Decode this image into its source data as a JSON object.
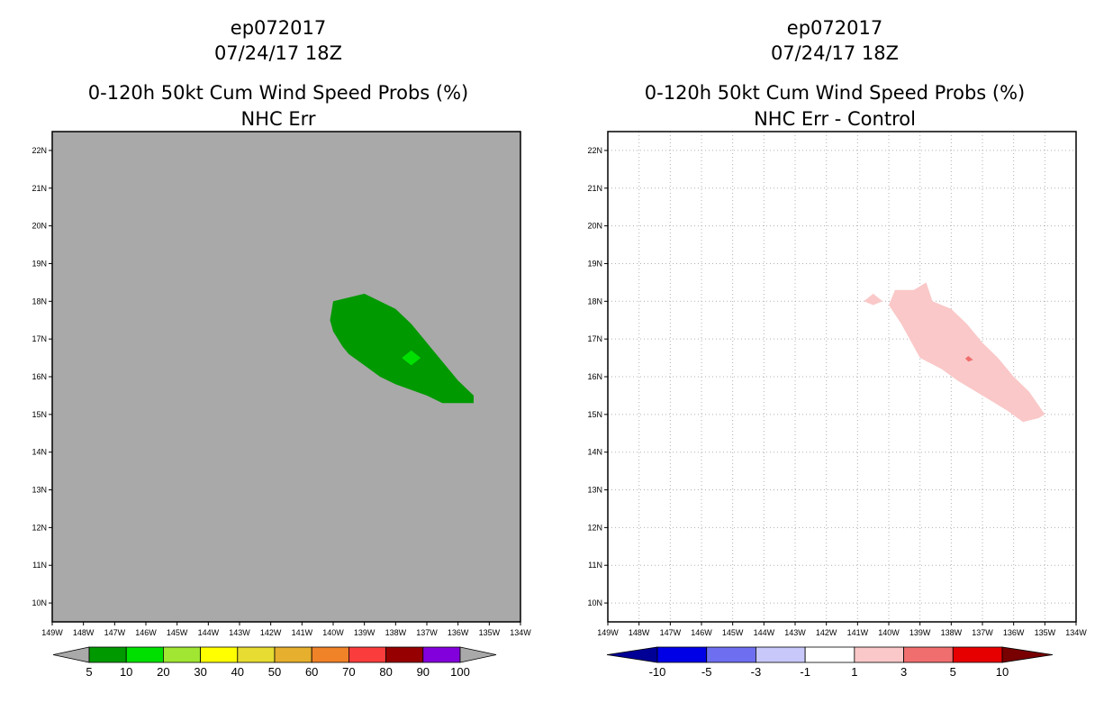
{
  "chart_data": [
    {
      "type": "filled-contour-map",
      "title_line1": "ep072017",
      "title_line2": "07/24/17 18Z",
      "title_line3": "0-120h 50kt Cum Wind Speed Probs (%)",
      "title_line4": "NHC Err",
      "background_color": "#a9a9a9",
      "grid": false,
      "xlim": [
        -149,
        -134
      ],
      "ylim": [
        9.5,
        22.5
      ],
      "x_ticks": [
        {
          "value": -149,
          "label": "149W"
        },
        {
          "value": -148,
          "label": "148W"
        },
        {
          "value": -147,
          "label": "147W"
        },
        {
          "value": -146,
          "label": "146W"
        },
        {
          "value": -145,
          "label": "145W"
        },
        {
          "value": -144,
          "label": "144W"
        },
        {
          "value": -143,
          "label": "143W"
        },
        {
          "value": -142,
          "label": "142W"
        },
        {
          "value": -141,
          "label": "141W"
        },
        {
          "value": -140,
          "label": "140W"
        },
        {
          "value": -139,
          "label": "139W"
        },
        {
          "value": -138,
          "label": "138W"
        },
        {
          "value": -137,
          "label": "137W"
        },
        {
          "value": -136,
          "label": "136W"
        },
        {
          "value": -135,
          "label": "135W"
        },
        {
          "value": -134,
          "label": "134W"
        }
      ],
      "y_ticks": [
        {
          "value": 10,
          "label": "10N"
        },
        {
          "value": 11,
          "label": "11N"
        },
        {
          "value": 12,
          "label": "12N"
        },
        {
          "value": 13,
          "label": "13N"
        },
        {
          "value": 14,
          "label": "14N"
        },
        {
          "value": 15,
          "label": "15N"
        },
        {
          "value": 16,
          "label": "16N"
        },
        {
          "value": 17,
          "label": "17N"
        },
        {
          "value": 18,
          "label": "18N"
        },
        {
          "value": 19,
          "label": "19N"
        },
        {
          "value": 20,
          "label": "20N"
        },
        {
          "value": 21,
          "label": "21N"
        },
        {
          "value": 22,
          "label": "22N"
        }
      ],
      "regions": [
        {
          "name": "5-10%",
          "color": "#009900",
          "points": [
            [
              -140.0,
              18.0
            ],
            [
              -139.0,
              18.2
            ],
            [
              -138.0,
              17.8
            ],
            [
              -137.5,
              17.4
            ],
            [
              -137.0,
              16.9
            ],
            [
              -136.5,
              16.4
            ],
            [
              -136.0,
              15.9
            ],
            [
              -135.5,
              15.5
            ],
            [
              -135.5,
              15.3
            ],
            [
              -136.0,
              15.3
            ],
            [
              -136.5,
              15.3
            ],
            [
              -137.0,
              15.5
            ],
            [
              -138.0,
              15.8
            ],
            [
              -138.5,
              16.0
            ],
            [
              -139.0,
              16.3
            ],
            [
              -139.5,
              16.6
            ],
            [
              -139.7,
              16.8
            ],
            [
              -140.0,
              17.2
            ],
            [
              -140.1,
              17.5
            ]
          ]
        },
        {
          "name": "10-20%",
          "color": "#00e000",
          "points": [
            [
              -137.5,
              16.7
            ],
            [
              -137.2,
              16.5
            ],
            [
              -137.5,
              16.3
            ],
            [
              -137.8,
              16.5
            ]
          ]
        }
      ],
      "colorbar": {
        "end_color": "#a9a9a9",
        "colors": [
          "#009900",
          "#00e000",
          "#a0e632",
          "#ffff00",
          "#e6dc32",
          "#e6af2d",
          "#f08228",
          "#fa3c3c",
          "#960000",
          "#8200dc"
        ],
        "labels": [
          "5",
          "10",
          "20",
          "30",
          "40",
          "50",
          "60",
          "70",
          "80",
          "90",
          "100"
        ]
      }
    },
    {
      "type": "filled-contour-map",
      "title_line1": "ep072017",
      "title_line2": "07/24/17 18Z",
      "title_line3": "0-120h 50kt Cum Wind Speed Probs (%)",
      "title_line4": "NHC Err - Control",
      "background_color": "#ffffff",
      "grid": true,
      "xlim": [
        -149,
        -134
      ],
      "ylim": [
        9.5,
        22.5
      ],
      "x_ticks": [
        {
          "value": -149,
          "label": "149W"
        },
        {
          "value": -148,
          "label": "148W"
        },
        {
          "value": -147,
          "label": "147W"
        },
        {
          "value": -146,
          "label": "146W"
        },
        {
          "value": -145,
          "label": "145W"
        },
        {
          "value": -144,
          "label": "144W"
        },
        {
          "value": -143,
          "label": "143W"
        },
        {
          "value": -142,
          "label": "142W"
        },
        {
          "value": -141,
          "label": "141W"
        },
        {
          "value": -140,
          "label": "140W"
        },
        {
          "value": -139,
          "label": "139W"
        },
        {
          "value": -138,
          "label": "138W"
        },
        {
          "value": -137,
          "label": "137W"
        },
        {
          "value": -136,
          "label": "136W"
        },
        {
          "value": -135,
          "label": "135W"
        },
        {
          "value": -134,
          "label": "134W"
        }
      ],
      "y_ticks": [
        {
          "value": 10,
          "label": "10N"
        },
        {
          "value": 11,
          "label": "11N"
        },
        {
          "value": 12,
          "label": "12N"
        },
        {
          "value": 13,
          "label": "13N"
        },
        {
          "value": 14,
          "label": "14N"
        },
        {
          "value": 15,
          "label": "15N"
        },
        {
          "value": 16,
          "label": "16N"
        },
        {
          "value": 17,
          "label": "17N"
        },
        {
          "value": 18,
          "label": "18N"
        },
        {
          "value": 19,
          "label": "19N"
        },
        {
          "value": 20,
          "label": "20N"
        },
        {
          "value": 21,
          "label": "21N"
        },
        {
          "value": 22,
          "label": "22N"
        }
      ],
      "regions": [
        {
          "name": "1-3 main",
          "color": "#fac8c8",
          "points": [
            [
              -139.8,
              18.3
            ],
            [
              -139.2,
              18.3
            ],
            [
              -138.8,
              18.5
            ],
            [
              -138.6,
              18.0
            ],
            [
              -138.0,
              17.8
            ],
            [
              -137.5,
              17.4
            ],
            [
              -137.0,
              16.9
            ],
            [
              -136.5,
              16.5
            ],
            [
              -136.0,
              16.0
            ],
            [
              -135.5,
              15.6
            ],
            [
              -135.0,
              15.0
            ],
            [
              -135.2,
              14.9
            ],
            [
              -135.7,
              14.8
            ],
            [
              -136.2,
              15.1
            ],
            [
              -136.6,
              15.3
            ],
            [
              -137.0,
              15.5
            ],
            [
              -137.8,
              15.9
            ],
            [
              -138.3,
              16.2
            ],
            [
              -139.0,
              16.5
            ],
            [
              -139.2,
              16.8
            ],
            [
              -139.6,
              17.4
            ],
            [
              -140.0,
              17.9
            ]
          ]
        },
        {
          "name": "1-3 small",
          "color": "#fac8c8",
          "points": [
            [
              -140.8,
              18.0
            ],
            [
              -140.5,
              18.2
            ],
            [
              -140.2,
              18.0
            ],
            [
              -140.5,
              17.9
            ]
          ]
        },
        {
          "name": "3-5 dot",
          "color": "#f06e6e",
          "points": [
            [
              -137.45,
              16.55
            ],
            [
              -137.3,
              16.45
            ],
            [
              -137.45,
              16.4
            ],
            [
              -137.55,
              16.48
            ]
          ]
        }
      ],
      "colorbar": {
        "low_end_color": "#000096",
        "high_end_color": "#780000",
        "colors": [
          "#0000e6",
          "#6e6ef0",
          "#c8c8fa",
          "#ffffff",
          "#fac8c8",
          "#f06e6e",
          "#e60000"
        ],
        "labels": [
          "-10",
          "-5",
          "-3",
          "-1",
          "1",
          "3",
          "5",
          "10"
        ]
      }
    }
  ]
}
